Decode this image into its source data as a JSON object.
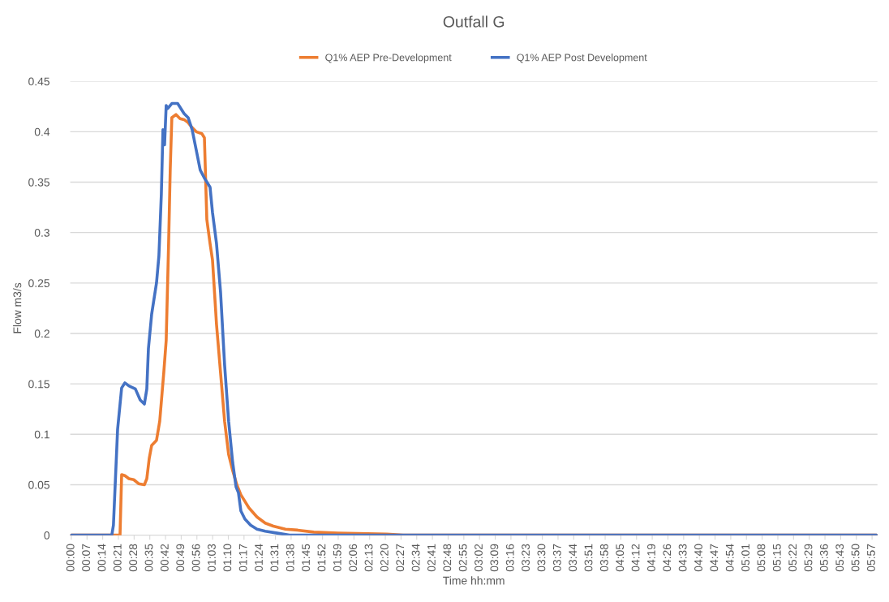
{
  "chart_data": {
    "type": "line",
    "title": "Outfall G",
    "xlabel": "Time hh:mm",
    "ylabel": "Flow m3/s",
    "series": [
      {
        "name": "Q1% AEP Pre-Development",
        "color": "#ed7d31",
        "x": [
          0,
          0.362,
          0.374,
          0.398,
          0.428,
          0.464,
          0.5,
          0.543,
          0.561,
          0.579,
          0.597,
          0.633,
          0.657,
          0.687,
          0.705,
          0.723,
          0.735,
          0.747,
          0.778,
          0.808,
          0.838,
          0.868,
          0.898,
          0.928,
          0.97,
          0.989,
          1.007,
          1.031,
          1.049,
          1.079,
          1.109,
          1.139,
          1.169,
          1.199,
          1.23,
          1.26,
          1.32,
          1.38,
          1.441,
          1.501,
          1.591,
          1.682,
          1.802,
          1.983,
          2.345,
          2.465,
          5.983
        ],
        "values": [
          0,
          0,
          0.06,
          0.059,
          0.056,
          0.055,
          0.051,
          0.05,
          0.056,
          0.076,
          0.089,
          0.094,
          0.113,
          0.161,
          0.193,
          0.289,
          0.362,
          0.414,
          0.417,
          0.413,
          0.412,
          0.409,
          0.404,
          0.4,
          0.398,
          0.394,
          0.313,
          0.289,
          0.273,
          0.209,
          0.161,
          0.113,
          0.08,
          0.064,
          0.05,
          0.04,
          0.027,
          0.018,
          0.012,
          0.009,
          0.006,
          0.005,
          0.003,
          0.002,
          0.001,
          0,
          0
        ]
      },
      {
        "name": "Q1% AEP Post Development",
        "color": "#4472c4",
        "x": [
          0,
          0.301,
          0.313,
          0.344,
          0.374,
          0.398,
          0.428,
          0.476,
          0.512,
          0.543,
          0.561,
          0.573,
          0.597,
          0.633,
          0.651,
          0.669,
          0.681,
          0.693,
          0.705,
          0.717,
          0.747,
          0.79,
          0.838,
          0.868,
          0.898,
          0.928,
          0.958,
          0.989,
          1.031,
          1.049,
          1.079,
          1.109,
          1.139,
          1.169,
          1.199,
          1.224,
          1.242,
          1.26,
          1.29,
          1.332,
          1.38,
          1.441,
          1.531,
          1.621,
          5.983
        ],
        "values": [
          0,
          0,
          0.01,
          0.105,
          0.146,
          0.151,
          0.148,
          0.145,
          0.134,
          0.13,
          0.145,
          0.185,
          0.219,
          0.25,
          0.277,
          0.338,
          0.402,
          0.387,
          0.426,
          0.423,
          0.428,
          0.428,
          0.418,
          0.414,
          0.402,
          0.382,
          0.362,
          0.354,
          0.345,
          0.32,
          0.289,
          0.241,
          0.169,
          0.113,
          0.072,
          0.048,
          0.042,
          0.024,
          0.016,
          0.01,
          0.006,
          0.004,
          0.002,
          0,
          0
        ]
      }
    ],
    "xlim": [
      -0.008,
      5.99
    ],
    "xticks": [
      {
        "value": 0,
        "label": "00:00"
      },
      {
        "value": 0.1167,
        "label": "00:07"
      },
      {
        "value": 0.2333,
        "label": "00:14"
      },
      {
        "value": 0.35,
        "label": "00:21"
      },
      {
        "value": 0.4667,
        "label": "00:28"
      },
      {
        "value": 0.5833,
        "label": "00:35"
      },
      {
        "value": 0.7,
        "label": "00:42"
      },
      {
        "value": 0.8167,
        "label": "00:49"
      },
      {
        "value": 0.9333,
        "label": "00:56"
      },
      {
        "value": 1.05,
        "label": "01:03"
      },
      {
        "value": 1.1667,
        "label": "01:10"
      },
      {
        "value": 1.2833,
        "label": "01:17"
      },
      {
        "value": 1.4,
        "label": "01:24"
      },
      {
        "value": 1.5167,
        "label": "01:31"
      },
      {
        "value": 1.6333,
        "label": "01:38"
      },
      {
        "value": 1.75,
        "label": "01:45"
      },
      {
        "value": 1.8667,
        "label": "01:52"
      },
      {
        "value": 1.9833,
        "label": "01:59"
      },
      {
        "value": 2.1,
        "label": "02:06"
      },
      {
        "value": 2.2167,
        "label": "02:13"
      },
      {
        "value": 2.3333,
        "label": "02:20"
      },
      {
        "value": 2.45,
        "label": "02:27"
      },
      {
        "value": 2.5667,
        "label": "02:34"
      },
      {
        "value": 2.6833,
        "label": "02:41"
      },
      {
        "value": 2.8,
        "label": "02:48"
      },
      {
        "value": 2.9167,
        "label": "02:55"
      },
      {
        "value": 3.0333,
        "label": "03:02"
      },
      {
        "value": 3.15,
        "label": "03:09"
      },
      {
        "value": 3.2667,
        "label": "03:16"
      },
      {
        "value": 3.3833,
        "label": "03:23"
      },
      {
        "value": 3.5,
        "label": "03:30"
      },
      {
        "value": 3.6167,
        "label": "03:37"
      },
      {
        "value": 3.7333,
        "label": "03:44"
      },
      {
        "value": 3.85,
        "label": "03:51"
      },
      {
        "value": 3.9667,
        "label": "03:58"
      },
      {
        "value": 4.0833,
        "label": "04:05"
      },
      {
        "value": 4.2,
        "label": "04:12"
      },
      {
        "value": 4.3167,
        "label": "04:19"
      },
      {
        "value": 4.4333,
        "label": "04:26"
      },
      {
        "value": 4.55,
        "label": "04:33"
      },
      {
        "value": 4.6667,
        "label": "04:40"
      },
      {
        "value": 4.7833,
        "label": "04:47"
      },
      {
        "value": 4.9,
        "label": "04:54"
      },
      {
        "value": 5.0167,
        "label": "05:01"
      },
      {
        "value": 5.1333,
        "label": "05:08"
      },
      {
        "value": 5.25,
        "label": "05:15"
      },
      {
        "value": 5.3667,
        "label": "05:22"
      },
      {
        "value": 5.4833,
        "label": "05:29"
      },
      {
        "value": 5.6,
        "label": "05:36"
      },
      {
        "value": 5.7167,
        "label": "05:43"
      },
      {
        "value": 5.8333,
        "label": "05:50"
      },
      {
        "value": 5.95,
        "label": "05:57"
      }
    ],
    "ylim": [
      0,
      0.45
    ],
    "yticks": [
      0,
      0.05,
      0.1,
      0.15,
      0.2,
      0.25,
      0.3,
      0.35,
      0.4,
      0.45
    ],
    "grid": "y",
    "legend": "top",
    "marker": "none",
    "line_style": "solid"
  }
}
